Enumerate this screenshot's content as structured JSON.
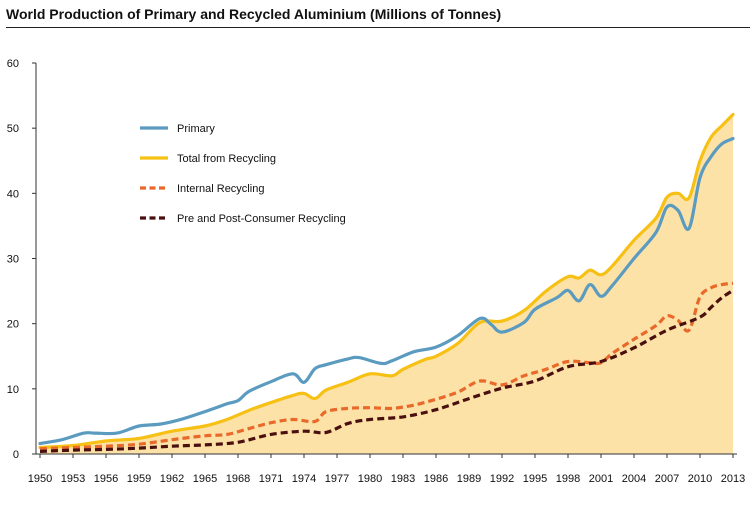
{
  "title": "World Production of Primary and Recycled Aluminium (Millions of Tonnes)",
  "colors": {
    "primary": "#5b9bc0",
    "total_recycling": "#f6c014",
    "internal_recycling": "#e8692a",
    "consumer_recycling": "#4a1010",
    "area_fill": "#fde2a8"
  },
  "chart_data": {
    "type": "line",
    "title": "World Production of Primary and Recycled Aluminium (Millions of Tonnes)",
    "xlabel": "",
    "ylabel": "",
    "xlim": [
      1950,
      2013
    ],
    "ylim": [
      0,
      60
    ],
    "yticks": [
      0,
      10,
      20,
      30,
      40,
      50,
      60
    ],
    "xticks": [
      1950,
      1953,
      1956,
      1959,
      1962,
      1965,
      1968,
      1971,
      1974,
      1977,
      1980,
      1983,
      1986,
      1989,
      1992,
      1995,
      1998,
      2001,
      2004,
      2007,
      2010,
      2013
    ],
    "grid": false,
    "legend_position": "upper-left inside plot",
    "series": [
      {
        "name": "Primary",
        "style": "solid",
        "x": [
          1950,
          1952,
          1954,
          1955,
          1957,
          1959,
          1961,
          1963,
          1965,
          1967,
          1968,
          1969,
          1971,
          1973,
          1974,
          1975,
          1976,
          1978,
          1979,
          1981,
          1982,
          1984,
          1986,
          1988,
          1990,
          1991,
          1992,
          1994,
          1995,
          1997,
          1998,
          1999,
          2000,
          2001,
          2002,
          2004,
          2006,
          2007,
          2008,
          2009,
          2010,
          2011,
          2012,
          2013
        ],
        "y": [
          1.6,
          2.2,
          3.2,
          3.2,
          3.2,
          4.3,
          4.6,
          5.4,
          6.5,
          7.7,
          8.2,
          9.6,
          11.1,
          12.3,
          11.0,
          13.1,
          13.7,
          14.6,
          14.8,
          13.9,
          14.3,
          15.7,
          16.4,
          18.2,
          20.8,
          19.9,
          18.7,
          20.2,
          22.2,
          24.0,
          25.1,
          23.5,
          26.0,
          24.2,
          25.8,
          30.0,
          34.0,
          37.9,
          37.4,
          34.6,
          42.4,
          45.6,
          47.6,
          48.4
        ]
      },
      {
        "name": "Total from Recycling",
        "style": "solid",
        "fill": true,
        "x": [
          1950,
          1953,
          1956,
          1959,
          1962,
          1965,
          1967,
          1969,
          1971,
          1973,
          1974,
          1975,
          1976,
          1978,
          1980,
          1982,
          1983,
          1985,
          1986,
          1988,
          1990,
          1992,
          1994,
          1996,
          1998,
          1999,
          2000,
          2001,
          2002,
          2004,
          2006,
          2007,
          2008,
          2009,
          2010,
          2011,
          2012,
          2013
        ],
        "y": [
          1.0,
          1.3,
          2.0,
          2.4,
          3.5,
          4.3,
          5.3,
          6.7,
          7.9,
          9.0,
          9.3,
          8.5,
          9.8,
          11.0,
          12.3,
          12.0,
          13.0,
          14.5,
          15.0,
          17.0,
          20.2,
          20.4,
          22.0,
          25.0,
          27.2,
          27.0,
          28.2,
          27.5,
          28.8,
          32.8,
          36.2,
          39.4,
          40.0,
          39.3,
          45.0,
          48.6,
          50.4,
          52.1
        ]
      },
      {
        "name": "Internal Recycling",
        "style": "dashed",
        "x": [
          1950,
          1953,
          1956,
          1959,
          1962,
          1965,
          1967,
          1969,
          1971,
          1973,
          1975,
          1976,
          1978,
          1980,
          1982,
          1984,
          1986,
          1988,
          1990,
          1992,
          1994,
          1996,
          1998,
          2000,
          2001,
          2002,
          2004,
          2006,
          2007,
          2008,
          2009,
          2010,
          2011,
          2012,
          2013
        ],
        "y": [
          0.8,
          1.0,
          1.2,
          1.5,
          2.2,
          2.8,
          3.0,
          3.9,
          4.8,
          5.3,
          5.0,
          6.5,
          7.0,
          7.1,
          7.0,
          7.5,
          8.4,
          9.5,
          11.2,
          10.6,
          12.0,
          13.0,
          14.2,
          14.0,
          14.0,
          15.4,
          17.6,
          19.7,
          21.2,
          20.5,
          19.0,
          24.1,
          25.5,
          26.0,
          26.2
        ]
      },
      {
        "name": "Pre and Post-Consumer Recycling",
        "style": "dashed",
        "x": [
          1950,
          1953,
          1956,
          1959,
          1962,
          1965,
          1968,
          1971,
          1974,
          1976,
          1978,
          1980,
          1983,
          1986,
          1989,
          1992,
          1995,
          1998,
          2001,
          2004,
          2007,
          2010,
          2011,
          2012,
          2013
        ],
        "y": [
          0.4,
          0.6,
          0.7,
          0.9,
          1.2,
          1.4,
          1.8,
          3.0,
          3.5,
          3.3,
          4.7,
          5.3,
          5.7,
          6.8,
          8.5,
          10.1,
          11.2,
          13.4,
          14.2,
          16.3,
          19.0,
          21.0,
          22.5,
          24.0,
          25.1
        ]
      }
    ]
  }
}
